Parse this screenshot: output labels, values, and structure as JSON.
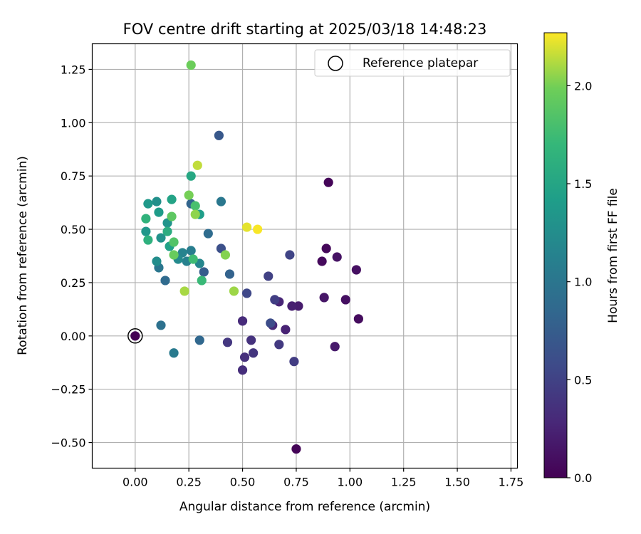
{
  "chart_data": {
    "type": "scatter",
    "title": "FOV centre drift starting at 2025/03/18 14:48:23",
    "xlabel": "Angular distance from reference (arcmin)",
    "ylabel": "Rotation from reference (arcmin)",
    "xlim": [
      -0.2,
      1.78
    ],
    "ylim": [
      -0.62,
      1.37
    ],
    "xticks": [
      0.0,
      0.25,
      0.5,
      0.75,
      1.0,
      1.25,
      1.5,
      1.75
    ],
    "xtick_labels": [
      "0.00",
      "0.25",
      "0.50",
      "0.75",
      "1.00",
      "1.25",
      "1.50",
      "1.75"
    ],
    "yticks": [
      -0.5,
      -0.25,
      0.0,
      0.25,
      0.5,
      0.75,
      1.0,
      1.25
    ],
    "ytick_labels": [
      "−0.50",
      "−0.25",
      "0.00",
      "0.25",
      "0.50",
      "0.75",
      "1.00",
      "1.25"
    ],
    "grid": true,
    "legend": {
      "placement": "top-right",
      "entries": [
        "Reference platepar"
      ]
    },
    "reference_point": {
      "x": 0.0,
      "y": 0.0
    },
    "colorbar": {
      "label": "Hours from first FF file",
      "colormap": "viridis",
      "range": [
        0.0,
        2.27
      ],
      "ticks": [
        0.0,
        0.5,
        1.0,
        1.5,
        2.0
      ],
      "tick_labels": [
        "0.0",
        "0.5",
        "1.0",
        "1.5",
        "2.0"
      ]
    },
    "points": [
      {
        "x": 0.0,
        "y": 0.0,
        "hours": 0.0
      },
      {
        "x": 0.75,
        "y": -0.53,
        "hours": 0.02
      },
      {
        "x": 0.9,
        "y": 0.72,
        "hours": 0.03
      },
      {
        "x": 0.89,
        "y": 0.41,
        "hours": 0.05
      },
      {
        "x": 0.87,
        "y": 0.35,
        "hours": 0.06
      },
      {
        "x": 1.04,
        "y": 0.08,
        "hours": 0.08
      },
      {
        "x": 0.98,
        "y": 0.17,
        "hours": 0.1
      },
      {
        "x": 1.03,
        "y": 0.31,
        "hours": 0.11
      },
      {
        "x": 0.94,
        "y": 0.37,
        "hours": 0.13
      },
      {
        "x": 0.88,
        "y": 0.18,
        "hours": 0.15
      },
      {
        "x": 0.93,
        "y": -0.05,
        "hours": 0.18
      },
      {
        "x": 0.76,
        "y": 0.14,
        "hours": 0.2
      },
      {
        "x": 0.73,
        "y": 0.14,
        "hours": 0.22
      },
      {
        "x": 0.7,
        "y": 0.03,
        "hours": 0.25
      },
      {
        "x": 0.67,
        "y": 0.16,
        "hours": 0.27
      },
      {
        "x": 0.64,
        "y": 0.05,
        "hours": 0.29
      },
      {
        "x": 0.5,
        "y": 0.07,
        "hours": 0.31
      },
      {
        "x": 0.5,
        "y": -0.16,
        "hours": 0.33
      },
      {
        "x": 0.51,
        "y": -0.1,
        "hours": 0.35
      },
      {
        "x": 0.54,
        "y": -0.02,
        "hours": 0.37
      },
      {
        "x": 0.55,
        "y": -0.08,
        "hours": 0.39
      },
      {
        "x": 0.43,
        "y": -0.03,
        "hours": 0.41
      },
      {
        "x": 0.67,
        "y": -0.04,
        "hours": 0.43
      },
      {
        "x": 0.74,
        "y": -0.12,
        "hours": 0.45
      },
      {
        "x": 0.65,
        "y": 0.17,
        "hours": 0.47
      },
      {
        "x": 0.62,
        "y": 0.28,
        "hours": 0.49
      },
      {
        "x": 0.72,
        "y": 0.38,
        "hours": 0.52
      },
      {
        "x": 0.52,
        "y": 0.2,
        "hours": 0.55
      },
      {
        "x": 0.63,
        "y": 0.06,
        "hours": 0.6
      },
      {
        "x": 0.4,
        "y": 0.41,
        "hours": 0.62
      },
      {
        "x": 0.39,
        "y": 0.94,
        "hours": 0.7
      },
      {
        "x": 0.32,
        "y": 0.3,
        "hours": 0.75
      },
      {
        "x": 0.44,
        "y": 0.29,
        "hours": 0.8
      },
      {
        "x": 0.26,
        "y": 0.62,
        "hours": 0.82
      },
      {
        "x": 0.3,
        "y": -0.02,
        "hours": 0.85
      },
      {
        "x": 0.14,
        "y": 0.26,
        "hours": 0.88
      },
      {
        "x": 0.34,
        "y": 0.48,
        "hours": 0.9
      },
      {
        "x": 0.12,
        "y": 0.05,
        "hours": 0.95
      },
      {
        "x": 0.11,
        "y": 0.32,
        "hours": 1.0
      },
      {
        "x": 0.4,
        "y": 0.63,
        "hours": 1.02
      },
      {
        "x": 0.18,
        "y": -0.08,
        "hours": 1.05
      },
      {
        "x": 0.26,
        "y": 0.4,
        "hours": 1.08
      },
      {
        "x": 0.24,
        "y": 0.35,
        "hours": 1.12
      },
      {
        "x": 0.22,
        "y": 0.39,
        "hours": 1.15
      },
      {
        "x": 0.3,
        "y": 0.34,
        "hours": 1.18
      },
      {
        "x": 0.2,
        "y": 0.36,
        "hours": 1.22
      },
      {
        "x": 0.1,
        "y": 0.35,
        "hours": 1.25
      },
      {
        "x": 0.1,
        "y": 0.63,
        "hours": 1.28
      },
      {
        "x": 0.12,
        "y": 0.46,
        "hours": 1.3
      },
      {
        "x": 0.15,
        "y": 0.53,
        "hours": 1.32
      },
      {
        "x": 0.05,
        "y": 0.49,
        "hours": 1.35
      },
      {
        "x": 0.06,
        "y": 0.62,
        "hours": 1.37
      },
      {
        "x": 0.11,
        "y": 0.58,
        "hours": 1.4
      },
      {
        "x": 0.3,
        "y": 0.57,
        "hours": 1.42
      },
      {
        "x": 0.16,
        "y": 0.42,
        "hours": 1.45
      },
      {
        "x": 0.17,
        "y": 0.64,
        "hours": 1.48
      },
      {
        "x": 0.26,
        "y": 0.75,
        "hours": 1.52
      },
      {
        "x": 0.15,
        "y": 0.49,
        "hours": 1.58
      },
      {
        "x": 0.06,
        "y": 0.45,
        "hours": 1.62
      },
      {
        "x": 0.05,
        "y": 0.55,
        "hours": 1.65
      },
      {
        "x": 0.31,
        "y": 0.26,
        "hours": 1.72
      },
      {
        "x": 0.27,
        "y": 0.36,
        "hours": 1.75
      },
      {
        "x": 0.28,
        "y": 0.61,
        "hours": 1.8
      },
      {
        "x": 0.18,
        "y": 0.44,
        "hours": 1.85
      },
      {
        "x": 0.17,
        "y": 0.56,
        "hours": 1.9
      },
      {
        "x": 0.18,
        "y": 0.38,
        "hours": 1.95
      },
      {
        "x": 0.26,
        "y": 1.27,
        "hours": 1.97
      },
      {
        "x": 0.25,
        "y": 0.66,
        "hours": 2.0
      },
      {
        "x": 0.42,
        "y": 0.38,
        "hours": 2.03
      },
      {
        "x": 0.28,
        "y": 0.57,
        "hours": 2.05
      },
      {
        "x": 0.46,
        "y": 0.21,
        "hours": 2.08
      },
      {
        "x": 0.23,
        "y": 0.21,
        "hours": 2.1
      },
      {
        "x": 0.29,
        "y": 0.8,
        "hours": 2.15
      },
      {
        "x": 0.52,
        "y": 0.51,
        "hours": 2.22
      },
      {
        "x": 0.57,
        "y": 0.5,
        "hours": 2.26
      }
    ]
  }
}
